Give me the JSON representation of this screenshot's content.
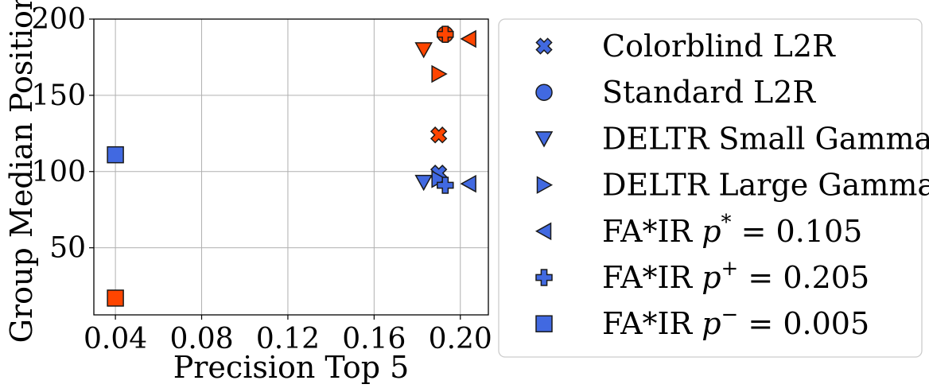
{
  "chart_data": {
    "type": "scatter",
    "xlabel": "Precision Top 5",
    "ylabel": "Group Median Position",
    "xlim": [
      0.03,
      0.213
    ],
    "ylim": [
      6,
      200
    ],
    "xticks": [
      0.04,
      0.08,
      0.12,
      0.16,
      0.2
    ],
    "xtick_labels": [
      "0.04",
      "0.08",
      "0.12",
      "0.16",
      "0.20"
    ],
    "yticks": [
      50,
      100,
      150,
      200
    ],
    "ytick_labels": [
      "50",
      "100",
      "150",
      "200"
    ],
    "grid": true,
    "legend_position": "right, outside plot",
    "colors": {
      "group_a": "#4169e1",
      "group_b": "#ff4500",
      "edge": "#1a1a1a"
    },
    "series": [
      {
        "name": "Colorblind L2R",
        "marker": "x-filled",
        "points": [
          {
            "x": 0.19,
            "y": 99,
            "group": "group_a"
          },
          {
            "x": 0.19,
            "y": 124,
            "group": "group_b"
          }
        ]
      },
      {
        "name": "Standard L2R",
        "marker": "circle",
        "points": [
          {
            "x": 0.193,
            "y": 190,
            "group": "group_b"
          }
        ]
      },
      {
        "name": "DELTR Small Gamma",
        "marker": "triangle-down",
        "points": [
          {
            "x": 0.183,
            "y": 93,
            "group": "group_a"
          },
          {
            "x": 0.183,
            "y": 180,
            "group": "group_b"
          }
        ]
      },
      {
        "name": "DELTR Large Gamma",
        "marker": "triangle-right",
        "points": [
          {
            "x": 0.19,
            "y": 95,
            "group": "group_a"
          },
          {
            "x": 0.19,
            "y": 164,
            "group": "group_b"
          }
        ]
      },
      {
        "name": "FA*IR p* = 0.105",
        "marker": "triangle-left",
        "points": [
          {
            "x": 0.204,
            "y": 92,
            "group": "group_a"
          },
          {
            "x": 0.204,
            "y": 187,
            "group": "group_b"
          }
        ]
      },
      {
        "name": "FA*IR p+ = 0.205",
        "marker": "plus-filled",
        "points": [
          {
            "x": 0.193,
            "y": 91,
            "group": "group_a"
          },
          {
            "x": 0.193,
            "y": 190,
            "group": "group_b"
          }
        ]
      },
      {
        "name": "FA*IR p− = 0.005",
        "marker": "square",
        "points": [
          {
            "x": 0.04,
            "y": 111,
            "group": "group_a"
          },
          {
            "x": 0.04,
            "y": 17,
            "group": "group_b"
          }
        ]
      }
    ],
    "legend": [
      {
        "marker": "x-filled",
        "text": "Colorblind L2R"
      },
      {
        "marker": "circle",
        "text": "Standard L2R"
      },
      {
        "marker": "triangle-down",
        "text": "DELTR Small Gamma"
      },
      {
        "marker": "triangle-right",
        "text": "DELTR Large Gamma"
      },
      {
        "marker": "triangle-left",
        "prefix": "FA*IR ",
        "var": "p",
        "sup": "*",
        "suffix": " = 0.105"
      },
      {
        "marker": "plus-filled",
        "prefix": "FA*IR ",
        "var": "p",
        "sup": "+",
        "suffix": " = 0.205"
      },
      {
        "marker": "square",
        "prefix": "FA*IR ",
        "var": "p",
        "sup": "−",
        "suffix": " = 0.005"
      }
    ]
  }
}
